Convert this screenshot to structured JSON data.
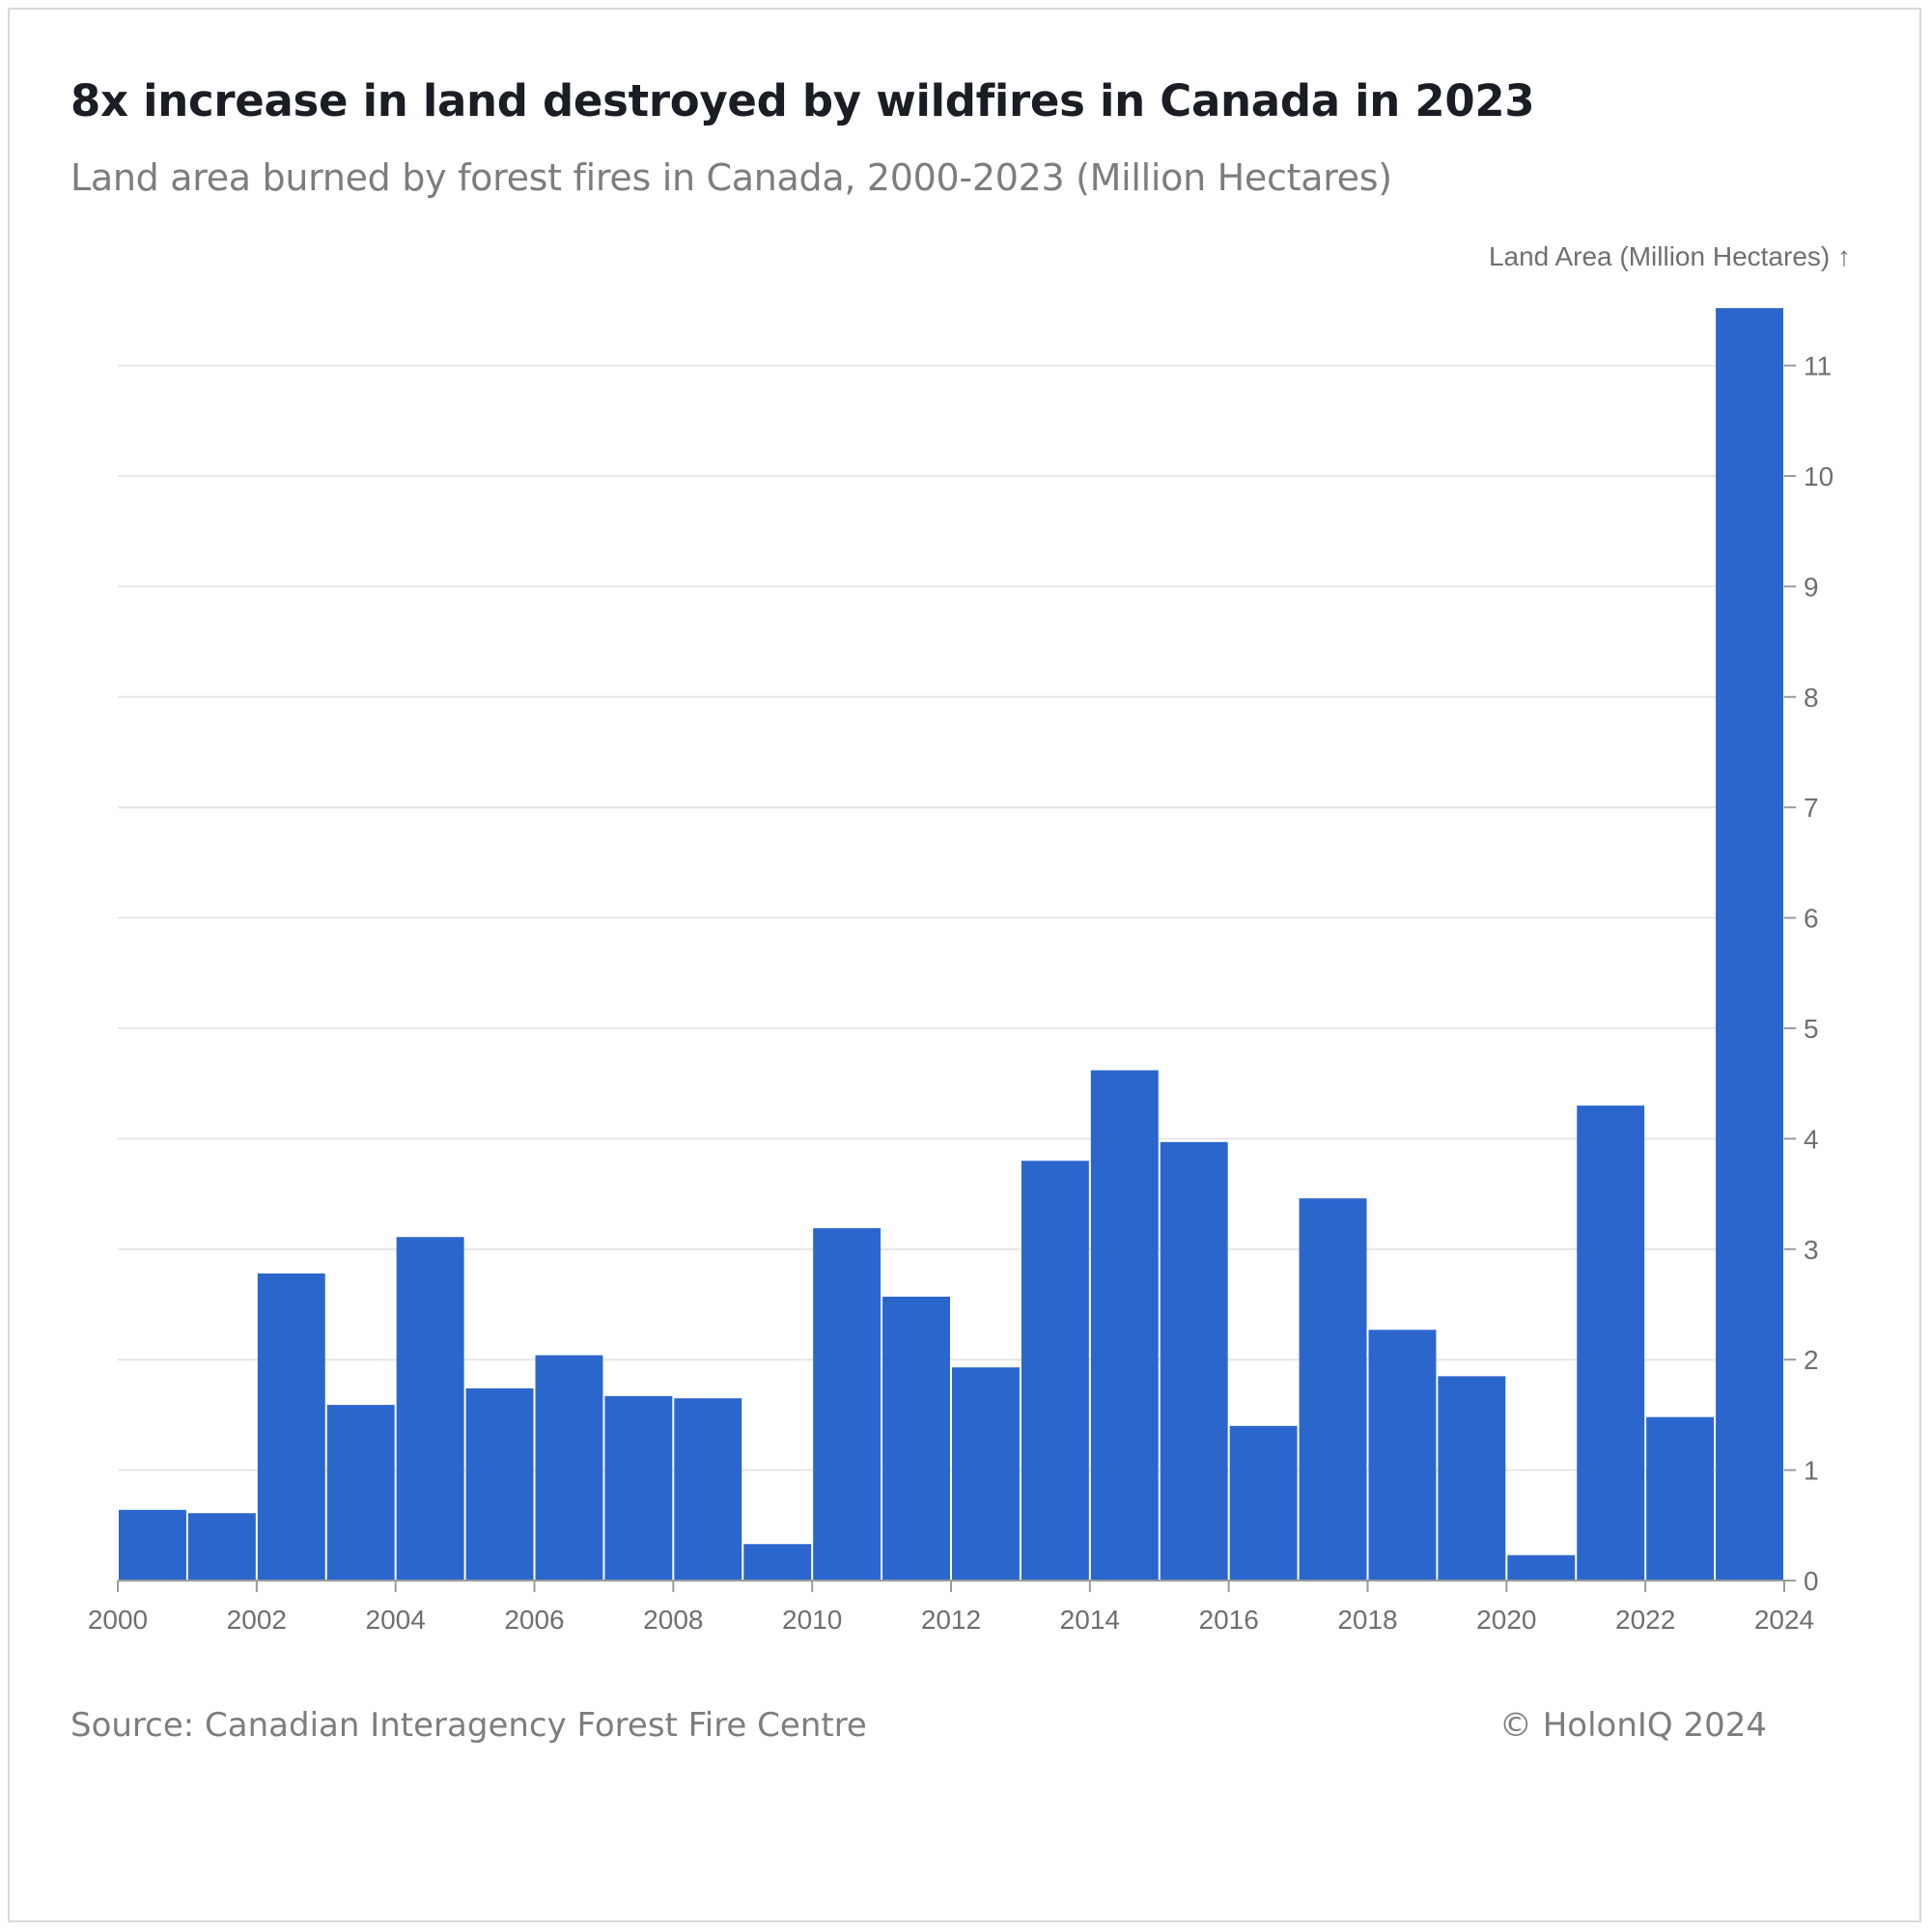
{
  "header": {
    "title": "8x increase in land destroyed by wildfires in Canada in 2023",
    "subtitle": "Land area burned by forest fires in Canada, 2000-2023 (Million Hectares)"
  },
  "footer": {
    "source": "Source: Canadian Interagency Forest Fire Centre",
    "copyright": "© HolonIQ 2024"
  },
  "chart_data": {
    "type": "bar",
    "ylabel": "Land Area (Million Hectares) ↑",
    "categories": [
      "2000",
      "2001",
      "2002",
      "2003",
      "2004",
      "2005",
      "2006",
      "2007",
      "2008",
      "2009",
      "2010",
      "2011",
      "2012",
      "2013",
      "2014",
      "2015",
      "2016",
      "2017",
      "2018",
      "2019",
      "2020",
      "2021",
      "2022",
      "2023"
    ],
    "values": [
      0.64,
      0.61,
      2.78,
      1.59,
      3.11,
      1.74,
      2.04,
      1.67,
      1.65,
      0.33,
      3.19,
      2.57,
      1.93,
      3.8,
      4.62,
      3.97,
      1.4,
      3.46,
      2.27,
      1.85,
      0.23,
      4.3,
      1.48,
      11.52
    ],
    "bar_color": "#2b66cd",
    "xlim": [
      2000,
      2024
    ],
    "ylim": [
      0,
      11.5
    ],
    "x_ticks": [
      "2000",
      "2002",
      "2004",
      "2006",
      "2008",
      "2010",
      "2012",
      "2014",
      "2016",
      "2018",
      "2020",
      "2022",
      "2024"
    ],
    "y_ticks": [
      "0",
      "1",
      "2",
      "3",
      "4",
      "5",
      "6",
      "7",
      "8",
      "9",
      "10",
      "11"
    ],
    "y_axis_position": "right",
    "grid": true
  }
}
